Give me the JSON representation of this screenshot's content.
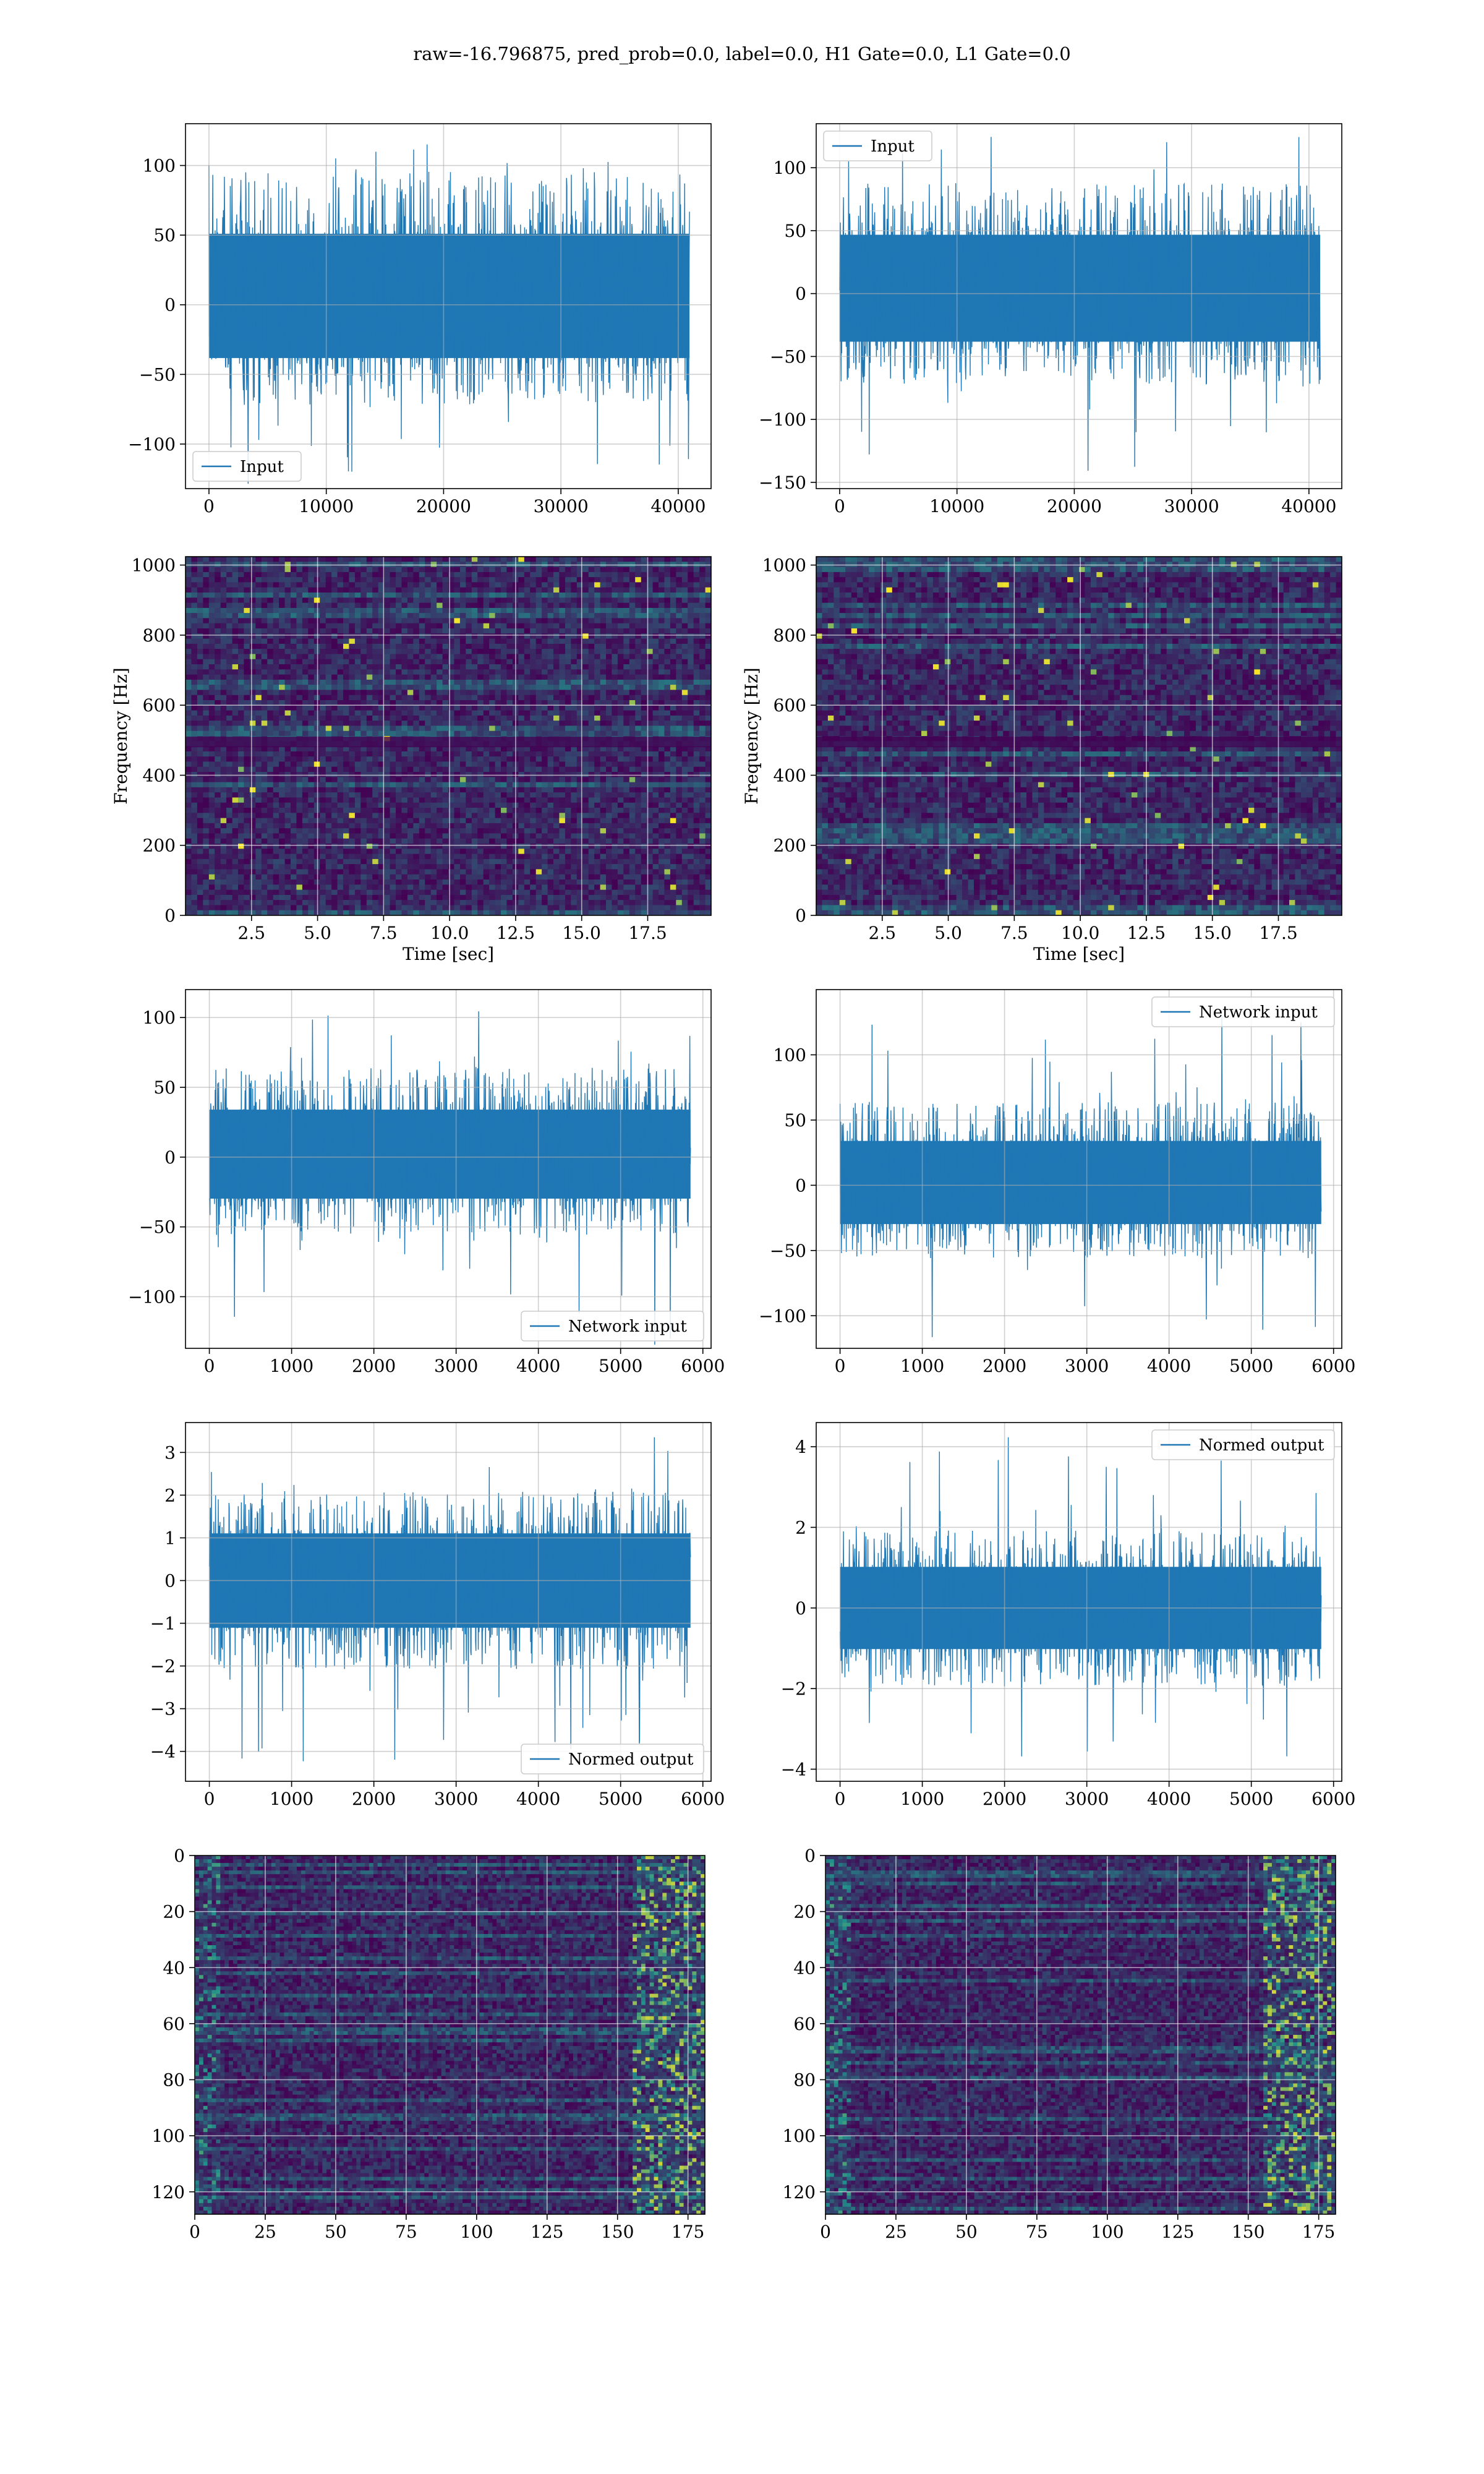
{
  "title": "raw=-16.796875, pred_prob=0.0, label=0.0, H1 Gate=0.0, L1 Gate=0.0",
  "colors": {
    "line": "#1f77b4",
    "heat_low": "#440154",
    "heat_mid": "#21918c",
    "heat_high": "#fde725"
  },
  "chart_data": [
    {
      "id": "input-left",
      "type": "line",
      "series": [
        {
          "name": "Input"
        }
      ],
      "legend": "lower-left",
      "xlim": [
        -2000,
        42800
      ],
      "ylim": [
        -132,
        130
      ],
      "xticks": [
        0,
        10000,
        20000,
        30000,
        40000
      ],
      "yticks": [
        -100,
        -50,
        0,
        50,
        100
      ],
      "xticklabels": [
        "0",
        "10000",
        "20000",
        "30000",
        "40000"
      ],
      "yticklabels": [
        "−100",
        "−50",
        "0",
        "50",
        "100"
      ],
      "x_range": [
        0,
        40960
      ],
      "band": [
        -45,
        60
      ],
      "spike_range": [
        -130,
        120
      ],
      "grid": true
    },
    {
      "id": "input-right",
      "type": "line",
      "series": [
        {
          "name": "Input"
        }
      ],
      "legend": "upper-left",
      "xlim": [
        -2000,
        42800
      ],
      "ylim": [
        -155,
        135
      ],
      "xticks": [
        0,
        10000,
        20000,
        30000,
        40000
      ],
      "yticks": [
        -150,
        -100,
        -50,
        0,
        50,
        100
      ],
      "xticklabels": [
        "0",
        "10000",
        "20000",
        "30000",
        "40000"
      ],
      "yticklabels": [
        "−150",
        "−100",
        "−50",
        "0",
        "50",
        "100"
      ],
      "x_range": [
        0,
        40960
      ],
      "band": [
        -45,
        55
      ],
      "spike_range": [
        -145,
        125
      ],
      "grid": true
    },
    {
      "id": "spectrogram-left",
      "type": "heatmap",
      "xlabel": "Time [sec]",
      "ylabel": "Frequency [Hz]",
      "xlim": [
        0,
        19.9
      ],
      "ylim": [
        0,
        1024
      ],
      "xticks": [
        2.5,
        5.0,
        7.5,
        10.0,
        12.5,
        15.0,
        17.5
      ],
      "yticks": [
        0,
        200,
        400,
        600,
        800,
        1000
      ],
      "xticklabels": [
        "2.5",
        "5.0",
        "7.5",
        "10.0",
        "12.5",
        "15.0",
        "17.5"
      ],
      "yticklabels": [
        "0",
        "200",
        "400",
        "600",
        "800",
        "1000"
      ],
      "grid": true
    },
    {
      "id": "spectrogram-right",
      "type": "heatmap",
      "xlabel": "Time [sec]",
      "ylabel": "Frequency [Hz]",
      "xlim": [
        0,
        19.9
      ],
      "ylim": [
        0,
        1024
      ],
      "xticks": [
        2.5,
        5.0,
        7.5,
        10.0,
        12.5,
        15.0,
        17.5
      ],
      "yticks": [
        0,
        200,
        400,
        600,
        800,
        1000
      ],
      "xticklabels": [
        "2.5",
        "5.0",
        "7.5",
        "10.0",
        "12.5",
        "15.0",
        "17.5"
      ],
      "yticklabels": [
        "0",
        "200",
        "400",
        "600",
        "800",
        "1000"
      ],
      "grid": true
    },
    {
      "id": "network-left",
      "type": "line",
      "series": [
        {
          "name": "Network input"
        }
      ],
      "legend": "lower-right",
      "xlim": [
        -290,
        6100
      ],
      "ylim": [
        -137,
        120
      ],
      "xticks": [
        0,
        1000,
        2000,
        3000,
        4000,
        5000,
        6000
      ],
      "yticks": [
        -100,
        -50,
        0,
        50,
        100
      ],
      "xticklabels": [
        "0",
        "1000",
        "2000",
        "3000",
        "4000",
        "5000",
        "6000"
      ],
      "yticklabels": [
        "−100",
        "−50",
        "0",
        "50",
        "100"
      ],
      "x_range": [
        0,
        5850
      ],
      "band": [
        -35,
        40
      ],
      "spike_range": [
        -135,
        105
      ],
      "grid": true
    },
    {
      "id": "network-right",
      "type": "line",
      "series": [
        {
          "name": "Network input"
        }
      ],
      "legend": "upper-right",
      "xlim": [
        -290,
        6100
      ],
      "ylim": [
        -125,
        150
      ],
      "xticks": [
        0,
        1000,
        2000,
        3000,
        4000,
        5000,
        6000
      ],
      "yticks": [
        -100,
        -50,
        0,
        50,
        100
      ],
      "xticklabels": [
        "0",
        "1000",
        "2000",
        "3000",
        "4000",
        "5000",
        "6000"
      ],
      "yticklabels": [
        "−100",
        "−50",
        "0",
        "50",
        "100"
      ],
      "x_range": [
        0,
        5850
      ],
      "band": [
        -35,
        40
      ],
      "spike_range": [
        -122,
        133
      ],
      "grid": true
    },
    {
      "id": "normed-left",
      "type": "line",
      "series": [
        {
          "name": "Normed output"
        }
      ],
      "legend": "lower-right",
      "xlim": [
        -290,
        6100
      ],
      "ylim": [
        -4.7,
        3.7
      ],
      "xticks": [
        0,
        1000,
        2000,
        3000,
        4000,
        5000,
        6000
      ],
      "yticks": [
        -4,
        -3,
        -2,
        -1,
        0,
        1,
        2,
        3
      ],
      "xticklabels": [
        "0",
        "1000",
        "2000",
        "3000",
        "4000",
        "5000",
        "6000"
      ],
      "yticklabels": [
        "−4",
        "−3",
        "−2",
        "−1",
        "0",
        "1",
        "2",
        "3"
      ],
      "x_range": [
        0,
        5850
      ],
      "band": [
        -1.3,
        1.3
      ],
      "spike_range": [
        -4.4,
        3.4
      ],
      "grid": true
    },
    {
      "id": "normed-right",
      "type": "line",
      "series": [
        {
          "name": "Normed output"
        }
      ],
      "legend": "upper-right",
      "xlim": [
        -290,
        6100
      ],
      "ylim": [
        -4.3,
        4.6
      ],
      "xticks": [
        0,
        1000,
        2000,
        3000,
        4000,
        5000,
        6000
      ],
      "yticks": [
        -4,
        -2,
        0,
        2,
        4
      ],
      "xticklabels": [
        "0",
        "1000",
        "2000",
        "3000",
        "4000",
        "5000",
        "6000"
      ],
      "yticklabels": [
        "−4",
        "−2",
        "0",
        "2",
        "4"
      ],
      "x_range": [
        0,
        5850
      ],
      "band": [
        -1.2,
        1.2
      ],
      "spike_range": [
        -3.9,
        4.3
      ],
      "grid": true
    },
    {
      "id": "feature-left",
      "type": "heatmap",
      "origin": "upper",
      "xlim": [
        0,
        181
      ],
      "ylim": [
        128,
        0
      ],
      "xticks": [
        0,
        25,
        50,
        75,
        100,
        125,
        150,
        175
      ],
      "yticks": [
        0,
        20,
        40,
        60,
        80,
        100,
        120
      ],
      "xticklabels": [
        "0",
        "25",
        "50",
        "75",
        "100",
        "125",
        "150",
        "175"
      ],
      "yticklabels": [
        "0",
        "20",
        "40",
        "60",
        "80",
        "100",
        "120"
      ],
      "grid": true
    },
    {
      "id": "feature-right",
      "type": "heatmap",
      "origin": "upper",
      "xlim": [
        0,
        181
      ],
      "ylim": [
        128,
        0
      ],
      "xticks": [
        0,
        25,
        50,
        75,
        100,
        125,
        150,
        175
      ],
      "yticks": [
        0,
        20,
        40,
        60,
        80,
        100,
        120
      ],
      "xticklabels": [
        "0",
        "25",
        "50",
        "75",
        "100",
        "125",
        "150",
        "175"
      ],
      "yticklabels": [
        "0",
        "20",
        "40",
        "60",
        "80",
        "100",
        "120"
      ],
      "grid": true
    }
  ]
}
